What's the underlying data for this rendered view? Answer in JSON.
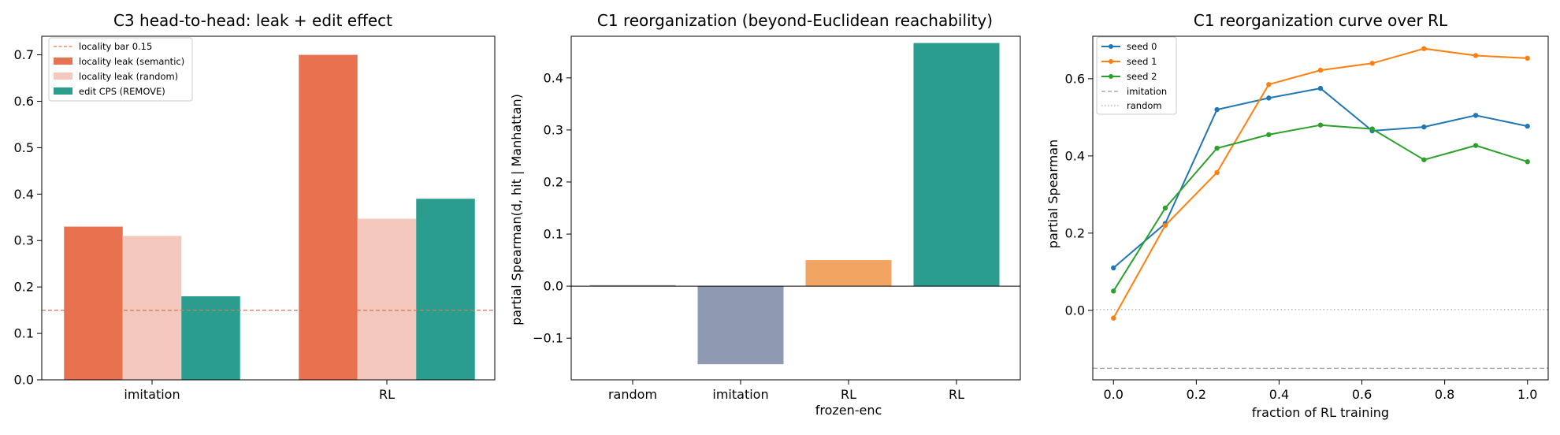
{
  "chart_data": [
    {
      "type": "bar",
      "title": "C3 head-to-head: leak + edit effect",
      "xlabel": "",
      "ylabel": "",
      "categories": [
        "imitation",
        "RL"
      ],
      "ylim": [
        0,
        0.74
      ],
      "yticks": [
        0.0,
        0.1,
        0.2,
        0.3,
        0.4,
        0.5,
        0.6,
        0.7
      ],
      "ytick_labels": [
        "0.0",
        "0.1",
        "0.2",
        "0.3",
        "0.4",
        "0.5",
        "0.6",
        "0.7"
      ],
      "series": [
        {
          "name": "locality leak (semantic)",
          "values": [
            0.33,
            0.7
          ],
          "color": "#e8714f"
        },
        {
          "name": "locality leak (random)",
          "values": [
            0.31,
            0.347
          ],
          "color": "#f5c8bd"
        },
        {
          "name": "edit CPS (REMOVE)",
          "values": [
            0.18,
            0.39
          ],
          "color": "#2a9d8f"
        }
      ],
      "reference_line": {
        "name": "locality bar 0.15",
        "value": 0.15,
        "color": "#e8714f",
        "style": "dashed"
      },
      "legend": "top-left",
      "grid": false
    },
    {
      "type": "bar",
      "title": "C1 reorganization (beyond-Euclidean reachability)",
      "xlabel": "",
      "ylabel": "partial Spearman(d, hit | Manhattan)",
      "categories": [
        "random",
        "imitation",
        "RL",
        "RL"
      ],
      "category_sublabels": [
        "",
        "",
        "frozen-enc",
        ""
      ],
      "values": [
        0.002,
        -0.15,
        0.05,
        0.467
      ],
      "colors": [
        "#9aa0b3",
        "#8e9ab2",
        "#f2a462",
        "#2a9d8f"
      ],
      "ylim": [
        -0.18,
        0.48
      ],
      "yticks": [
        -0.1,
        0.0,
        0.1,
        0.2,
        0.3,
        0.4
      ],
      "ytick_labels": [
        "−0.1",
        "0.0",
        "0.1",
        "0.2",
        "0.3",
        "0.4"
      ],
      "zero_line": true,
      "grid": false
    },
    {
      "type": "line",
      "title": "C1 reorganization curve over RL",
      "xlabel": "fraction of RL training",
      "ylabel": "partial Spearman",
      "xlim": [
        -0.05,
        1.05
      ],
      "ylim": [
        -0.18,
        0.71
      ],
      "xticks": [
        0.0,
        0.2,
        0.4,
        0.6,
        0.8,
        1.0
      ],
      "xtick_labels": [
        "0.0",
        "0.2",
        "0.4",
        "0.6",
        "0.8",
        "1.0"
      ],
      "yticks": [
        0.0,
        0.2,
        0.4,
        0.6
      ],
      "ytick_labels": [
        "0.0",
        "0.2",
        "0.4",
        "0.6"
      ],
      "x": [
        0.0,
        0.125,
        0.25,
        0.375,
        0.5,
        0.625,
        0.75,
        0.875,
        1.0
      ],
      "series": [
        {
          "name": "seed 0",
          "values": [
            0.11,
            0.225,
            0.52,
            0.55,
            0.575,
            0.465,
            0.475,
            0.505,
            0.477
          ],
          "color": "#1f77b4"
        },
        {
          "name": "seed 1",
          "values": [
            -0.02,
            0.22,
            0.357,
            0.585,
            0.622,
            0.64,
            0.678,
            0.66,
            0.653
          ],
          "color": "#ff7f0e"
        },
        {
          "name": "seed 2",
          "values": [
            0.05,
            0.265,
            0.42,
            0.455,
            0.48,
            0.47,
            0.39,
            0.427,
            0.385
          ],
          "color": "#2ca02c"
        }
      ],
      "reference_lines": [
        {
          "name": "imitation",
          "value": -0.15,
          "color": "#8e9ab2",
          "style": "dashed"
        },
        {
          "name": "random",
          "value": 0.002,
          "color": "#aaaaaa",
          "style": "dotted"
        }
      ],
      "legend": "top-left",
      "grid": false
    }
  ]
}
